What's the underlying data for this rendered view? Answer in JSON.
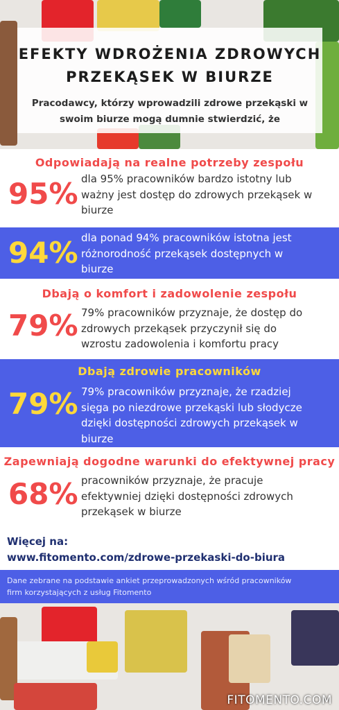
{
  "header": {
    "title": [
      "EFEKTY WDROŻENIA ZDROWYCH",
      "PRZEKĄSEK W BIURZE"
    ],
    "subtitle": [
      "Pracodawcy, którzy wprowadzili zdrowe przekąski w",
      "swoim biurze mogą dumnie stwierdzić, że"
    ]
  },
  "sections": [
    {
      "heading": "Odpowiadają na realne potrzeby zespołu",
      "stat": "95%",
      "text": [
        "dla 95% pracowników bardzo istotny lub",
        "ważny jest dostęp do zdrowych przekąsek w",
        "biurze"
      ]
    },
    {
      "stat": "94%",
      "text": [
        "dla ponad 94% pracowników istotna jest",
        "różnorodność przekąsek dostępnych w",
        "biurze"
      ]
    },
    {
      "heading": "Dbają  o komfort i zadowolenie zespołu",
      "stat": "79%",
      "text": [
        "79% pracowników przyznaje, że dostęp do",
        "zdrowych przekąsek przyczynił się do",
        "wzrostu zadowolenia i komfortu pracy"
      ]
    },
    {
      "heading": "Dbają zdrowie pracowników",
      "stat": "79%",
      "text": [
        "79% pracowników przyznaje, że rzadziej",
        "sięga po niezdrowe przekąski lub słodycze",
        "dzięki dostępności zdrowych przekąsek w",
        "biurze"
      ]
    },
    {
      "heading": "Zapewniają dogodne warunki do efektywnej pracy",
      "stat": "68%",
      "text": [
        "pracowników przyznaje, że pracuje",
        "efektywniej dzięki dostępności zdrowych",
        "przekąsek w biurze"
      ]
    }
  ],
  "more": {
    "label": "Więcej na:",
    "url": "www.fitomento.com/zdrowe-przekaski-do-biura"
  },
  "note": [
    "Dane zebrane na podstawie ankiet przeprowadzonych wśród pracowników",
    "firm korzystających z usług Fitomento"
  ],
  "footer": "FITOMENTO.COM"
}
